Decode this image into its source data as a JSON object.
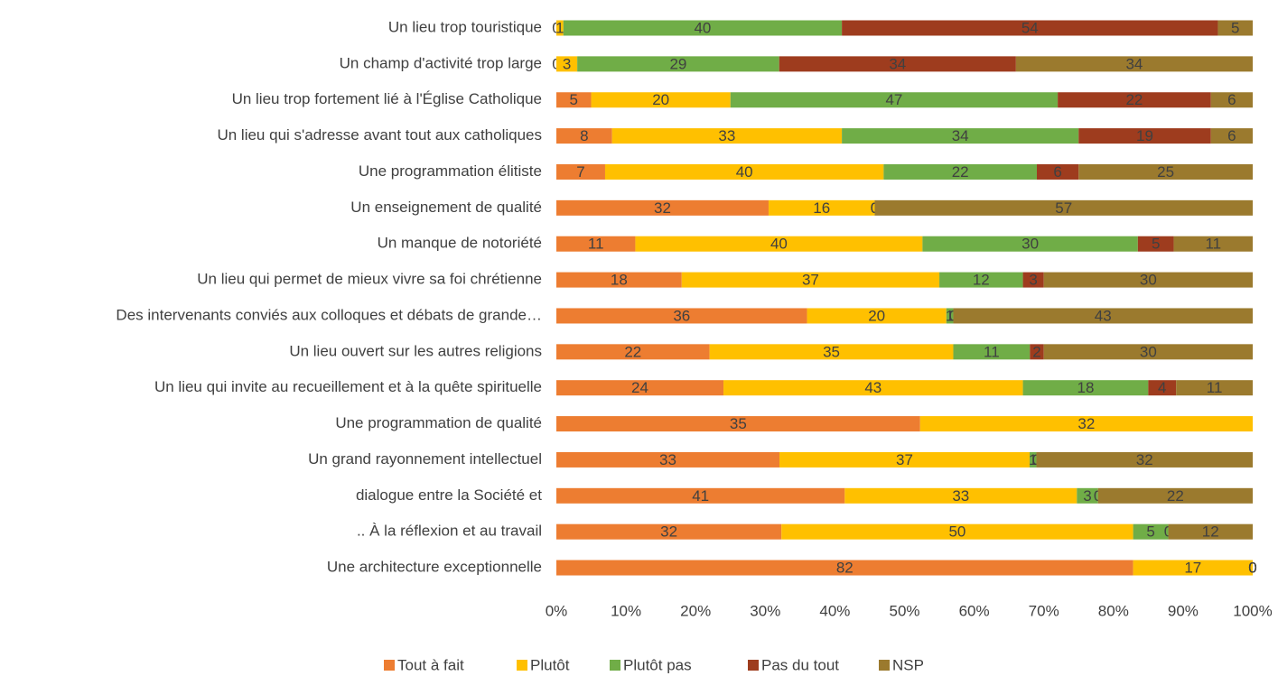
{
  "chart_data": {
    "type": "bar",
    "orientation": "horizontal",
    "stacking": "percent",
    "categories": [
      "Un lieu trop touristique",
      "Un champ d'activité trop large",
      "Un lieu trop fortement lié à l'Église Catholique",
      "Un lieu qui s'adresse avant tout aux catholiques",
      "Une programmation élitiste",
      "Un enseignement de qualité",
      "Un manque de notoriété",
      "Un lieu qui permet de mieux vivre sa foi chrétienne",
      "Des intervenants conviés aux colloques et débats de grande…",
      "Un lieu ouvert sur les autres religions",
      "Un lieu qui invite au recueillement et à la quête spirituelle",
      "Une programmation de qualité",
      "Un grand rayonnement intellectuel",
      "dialogue entre la Société et",
      ".. À la réflexion et au travail",
      "Une architecture exceptionnelle"
    ],
    "series": [
      {
        "name": "Tout à fait",
        "color": "#ed7d31",
        "values": [
          0,
          0,
          5,
          8,
          7,
          32,
          11,
          18,
          36,
          22,
          24,
          35,
          33,
          41,
          32,
          82
        ]
      },
      {
        "name": "Plutôt",
        "color": "#ffc000",
        "values": [
          1,
          3,
          20,
          33,
          40,
          16,
          40,
          37,
          20,
          35,
          43,
          32,
          37,
          33,
          50,
          17
        ]
      },
      {
        "name": "Plutôt pas",
        "color": "#70ad47",
        "values": [
          40,
          29,
          47,
          34,
          22,
          0,
          30,
          12,
          1,
          11,
          18,
          null,
          1,
          3,
          5,
          0
        ]
      },
      {
        "name": "Pas du tout",
        "color": "#9e3c1e",
        "values": [
          54,
          34,
          22,
          19,
          6,
          0,
          5,
          3,
          0,
          2,
          4,
          null,
          0,
          0,
          0,
          0
        ]
      },
      {
        "name": "NSP",
        "color": "#9b7a2e",
        "values": [
          5,
          34,
          6,
          6,
          25,
          57,
          11,
          30,
          43,
          30,
          11,
          null,
          32,
          22,
          12,
          0
        ]
      }
    ],
    "xlim": [
      0,
      100
    ],
    "xticks": [
      {
        "value": 0,
        "label": "0%"
      },
      {
        "value": 10,
        "label": "10%"
      },
      {
        "value": 20,
        "label": "20%"
      },
      {
        "value": 30,
        "label": "30%"
      },
      {
        "value": 40,
        "label": "40%"
      },
      {
        "value": 50,
        "label": "50%"
      },
      {
        "value": 60,
        "label": "60%"
      },
      {
        "value": 70,
        "label": "70%"
      },
      {
        "value": 80,
        "label": "80%"
      },
      {
        "value": 90,
        "label": "90%"
      },
      {
        "value": 100,
        "label": "100%"
      }
    ],
    "legend": "bottom"
  }
}
